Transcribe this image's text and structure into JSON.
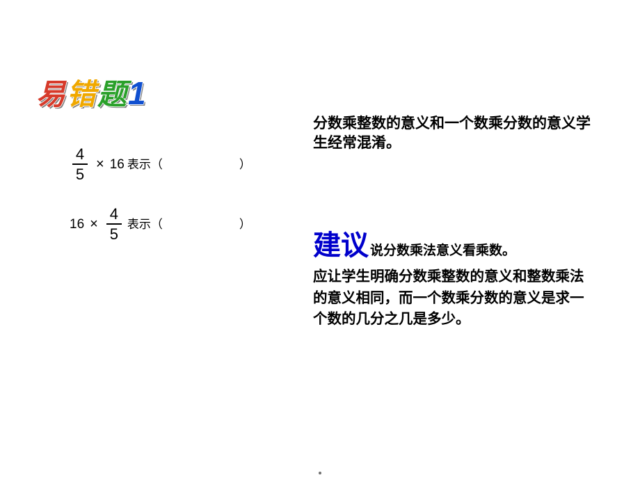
{
  "title": {
    "chars": [
      "易",
      "错",
      "题",
      "1"
    ],
    "colors": [
      "#d63a2a",
      "#f0a800",
      "#2aa02a",
      "#1050d0"
    ],
    "shadow_color": "#808080"
  },
  "math": {
    "line1": {
      "frac_num": "4",
      "frac_den": "5",
      "times": "×",
      "integer": "16",
      "label_prefix": "表示（",
      "label_suffix": "）"
    },
    "line2": {
      "integer": "16",
      "times": "×",
      "frac_num": "4",
      "frac_den": "5",
      "label_prefix": "表示（",
      "label_suffix": "）"
    }
  },
  "right_intro": "分数乘整数的意义和一个数乘分数的意义学生经常混淆。",
  "advice_heading": "建议",
  "advice_firstline": "说分数乘法意义看乘数。",
  "advice_body": "应让学生明确分数乘整数的意义和整数乘法的意义相同，而一个数乘分数的意义是求一个数的几分之几是多少。",
  "colors": {
    "advice_heading": "#0000cc",
    "body_text": "#000000",
    "background": "#ffffff"
  },
  "fonts": {
    "title_size_pt": 42,
    "body_size_pt": 21,
    "advice_heading_size_pt": 40
  }
}
